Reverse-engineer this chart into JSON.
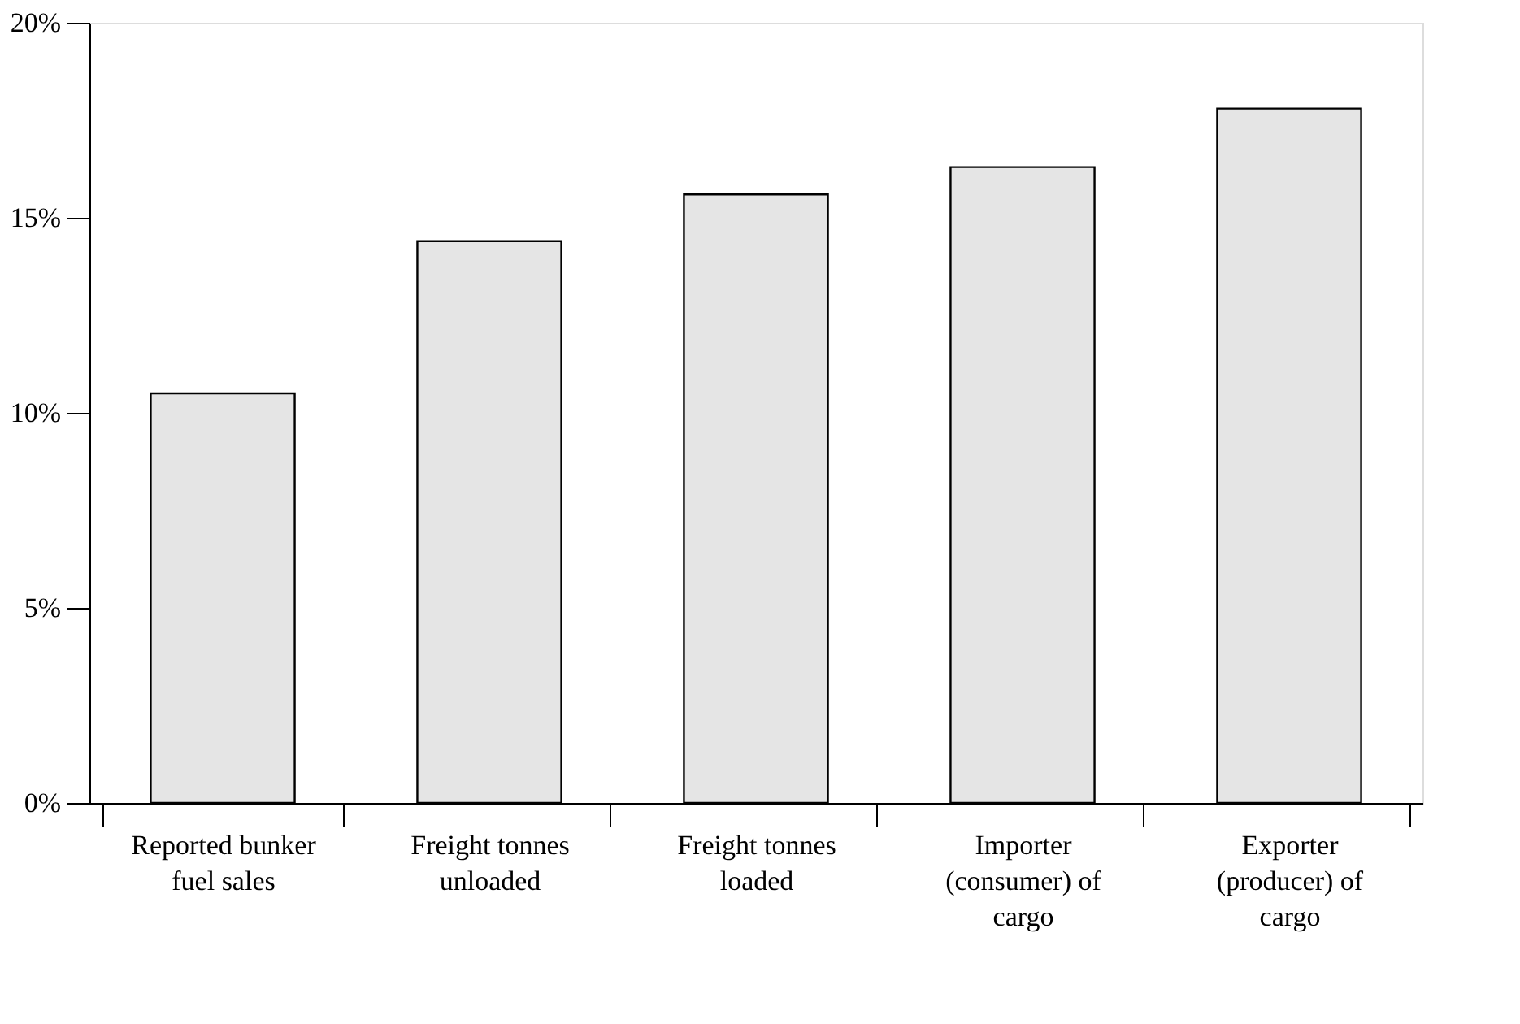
{
  "chart_data": {
    "type": "bar",
    "categories": [
      "Reported bunker fuel sales",
      "Freight tonnes unloaded",
      "Freight tonnes loaded",
      "Importer (consumer) of cargo",
      "Exporter (producer) of cargo"
    ],
    "values": [
      10.5,
      14.4,
      15.6,
      16.3,
      17.8
    ],
    "color": "#e5e5e5",
    "ylim": [
      0,
      20
    ],
    "yticks": [
      {
        "value": 0,
        "label": "0%"
      },
      {
        "value": 5,
        "label": "5%"
      },
      {
        "value": 10,
        "label": "10%"
      },
      {
        "value": 15,
        "label": "15%"
      },
      {
        "value": 20,
        "label": "20%"
      }
    ],
    "grid": false
  }
}
